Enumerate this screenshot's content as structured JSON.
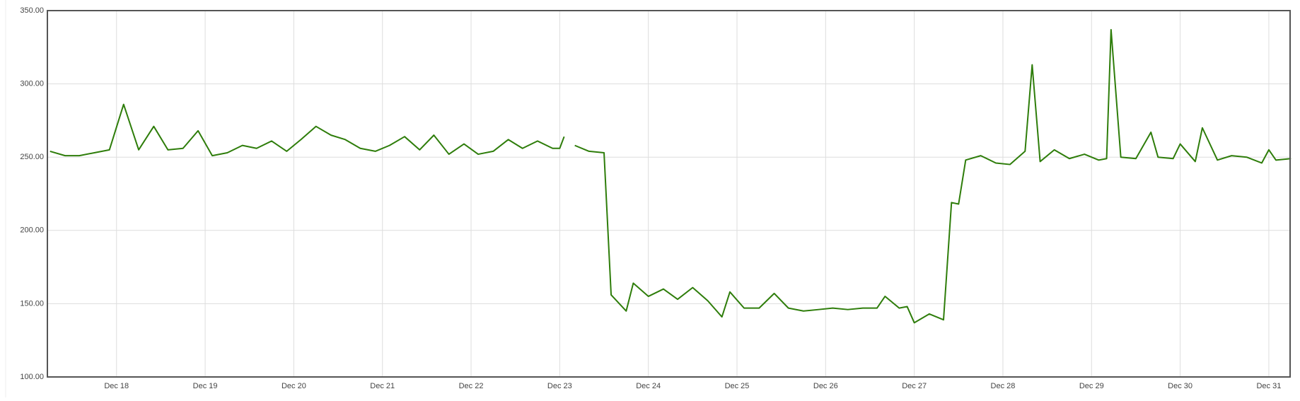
{
  "chart_data": {
    "type": "line",
    "x": [
      17.25,
      17.42,
      17.58,
      17.75,
      17.92,
      18.08,
      18.25,
      18.42,
      18.58,
      18.75,
      18.92,
      19.08,
      19.25,
      19.42,
      19.58,
      19.75,
      19.92,
      20.08,
      20.25,
      20.42,
      20.58,
      20.75,
      20.92,
      21.08,
      21.25,
      21.42,
      21.58,
      21.75,
      21.92,
      22.08,
      22.25,
      22.42,
      22.58,
      22.75,
      22.92,
      23.0,
      23.05,
      23.1,
      23.17,
      23.33,
      23.5,
      23.58,
      23.75,
      23.83,
      24.0,
      24.17,
      24.33,
      24.5,
      24.67,
      24.83,
      24.92,
      25.08,
      25.25,
      25.42,
      25.58,
      25.75,
      25.92,
      26.08,
      26.25,
      26.42,
      26.58,
      26.67,
      26.83,
      26.92,
      27.0,
      27.17,
      27.33,
      27.42,
      27.5,
      27.58,
      27.75,
      27.92,
      28.08,
      28.25,
      28.33,
      28.42,
      28.58,
      28.75,
      28.92,
      29.08,
      29.17,
      29.22,
      29.33,
      29.5,
      29.67,
      29.75,
      29.92,
      30.0,
      30.17,
      30.25,
      30.42,
      30.58,
      30.75,
      30.92,
      31.0,
      31.08,
      31.25
    ],
    "series": [
      {
        "color": "#2e7d0a",
        "values": [
          254,
          251,
          251,
          253,
          255,
          286,
          255,
          271,
          255,
          256,
          268,
          251,
          253,
          258,
          256,
          261,
          254,
          262,
          271,
          265,
          262,
          256,
          254,
          258,
          264,
          255,
          265,
          252,
          259,
          252,
          254,
          262,
          256,
          261,
          256,
          256,
          264,
          null,
          258,
          254,
          253,
          156,
          145,
          164,
          155,
          160,
          153,
          161,
          152,
          141,
          158,
          147,
          147,
          157,
          147,
          145,
          146,
          147,
          146,
          147,
          147,
          155,
          147,
          148,
          137,
          143,
          139,
          219,
          218,
          248,
          251,
          246,
          245,
          254,
          313,
          247,
          255,
          249,
          252,
          248,
          249,
          337,
          250,
          249,
          267,
          250,
          249,
          259,
          247,
          270,
          248,
          251,
          250,
          246,
          255,
          248,
          249
        ]
      }
    ],
    "xlim": [
      17.22,
      31.24
    ],
    "xticks": [
      {
        "value": 18,
        "label": "Dec 18"
      },
      {
        "value": 19,
        "label": "Dec 19"
      },
      {
        "value": 20,
        "label": "Dec 20"
      },
      {
        "value": 21,
        "label": "Dec 21"
      },
      {
        "value": 22,
        "label": "Dec 22"
      },
      {
        "value": 23,
        "label": "Dec 23"
      },
      {
        "value": 24,
        "label": "Dec 24"
      },
      {
        "value": 25,
        "label": "Dec 25"
      },
      {
        "value": 26,
        "label": "Dec 26"
      },
      {
        "value": 27,
        "label": "Dec 27"
      },
      {
        "value": 28,
        "label": "Dec 28"
      },
      {
        "value": 29,
        "label": "Dec 29"
      },
      {
        "value": 30,
        "label": "Dec 30"
      },
      {
        "value": 31,
        "label": "Dec 31"
      }
    ],
    "ylim": [
      100,
      350
    ],
    "yticks": [
      {
        "value": 100,
        "label": "100.00"
      },
      {
        "value": 150,
        "label": "150.00"
      },
      {
        "value": 200,
        "label": "200.00"
      },
      {
        "value": 250,
        "label": "250.00"
      },
      {
        "value": 300,
        "label": "300.00"
      },
      {
        "value": 350,
        "label": "350.00"
      }
    ],
    "grid": true
  }
}
